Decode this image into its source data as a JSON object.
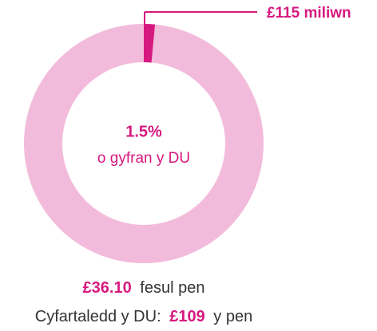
{
  "chart_data": {
    "type": "donut",
    "values": [
      1.5
    ],
    "value_labels": [
      "1.5%"
    ],
    "color": "#d6197f",
    "track_color": "#f3bbdb",
    "center_label": "o gyfran y DU",
    "callout": "£115 miliwn",
    "footer": [
      {
        "bold": "£36.10",
        "text": "fesul pen"
      },
      {
        "text": "Cyfartaledd y DU:",
        "bold": "£109",
        "after": "y pen"
      }
    ]
  }
}
